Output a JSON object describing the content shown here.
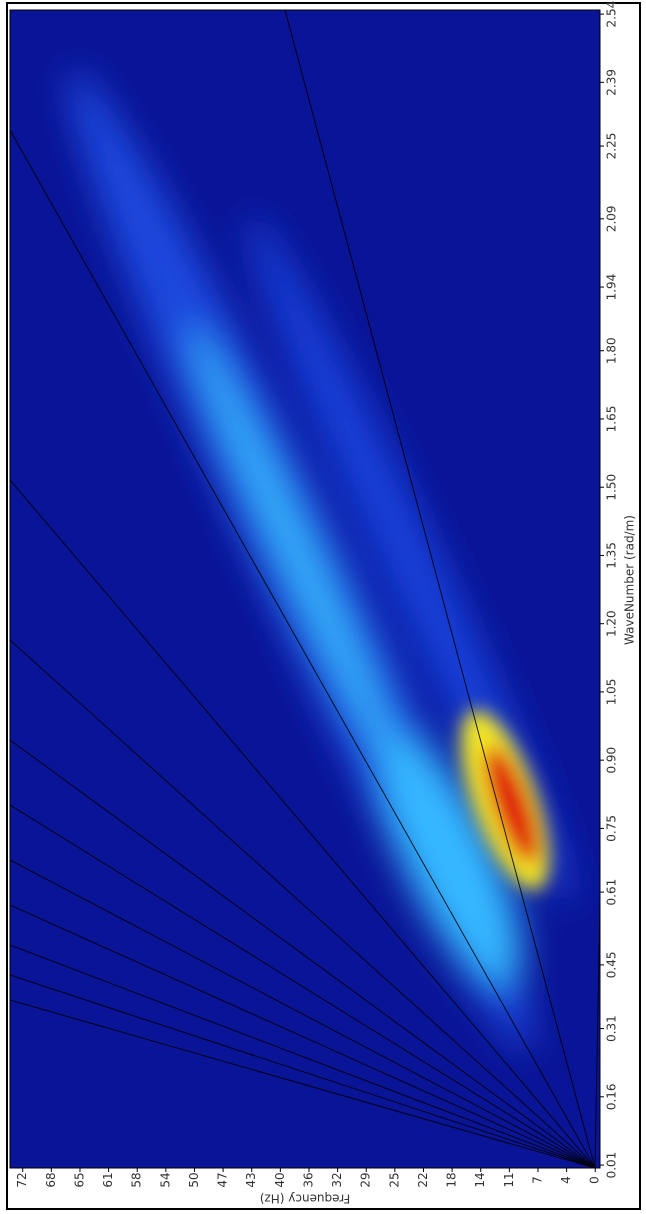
{
  "chart_data": {
    "type": "heatmap",
    "x_label": "WaveNumber (rad/m)",
    "y_label": "Frequency (Hz)",
    "xlim": [
      0.0035,
      2.549
    ],
    "xticks": [
      0.01,
      0.16,
      0.31,
      0.45,
      0.61,
      0.75,
      {
        "value": 0.9,
        "label": "0.90"
      },
      1.05,
      {
        "value": 1.2,
        "label": "1.20"
      },
      1.35,
      {
        "value": 1.5,
        "label": "1.50"
      },
      1.65,
      {
        "value": 1.8,
        "label": "1.80"
      },
      1.94,
      2.09,
      2.25,
      2.39,
      2.54
    ],
    "ylim": [
      -0.6,
      73.6
    ],
    "yticks": [
      0,
      {
        "value": 3.6,
        "label": "4"
      },
      {
        "value": 7.2,
        "label": "7"
      },
      {
        "value": 10.8,
        "label": "11"
      },
      {
        "value": 14.4,
        "label": "14"
      },
      18,
      {
        "value": 21.6,
        "label": "22"
      },
      {
        "value": 25.2,
        "label": "25"
      },
      {
        "value": 28.8,
        "label": "29"
      },
      {
        "value": 32.4,
        "label": "32"
      },
      36,
      {
        "value": 39.6,
        "label": "40"
      },
      {
        "value": 43.2,
        "label": "43"
      },
      {
        "value": 46.8,
        "label": "47"
      },
      {
        "value": 50.4,
        "label": "50"
      },
      54,
      {
        "value": 57.6,
        "label": "58"
      },
      {
        "value": 61.2,
        "label": "61"
      },
      {
        "value": 64.8,
        "label": "65"
      },
      {
        "value": 68.4,
        "label": "68"
      },
      72
    ]
  }
}
